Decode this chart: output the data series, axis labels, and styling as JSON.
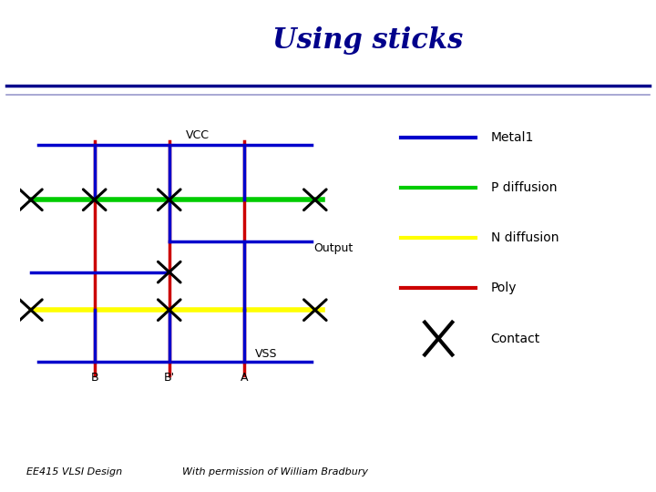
{
  "title": "Using sticks",
  "title_color": "#00008B",
  "title_fontsize": 22,
  "title_style": "italic",
  "title_font": "serif",
  "background_color": "#ffffff",
  "header_line1_color": "#00008B",
  "header_line2_color": "#9999cc",
  "metal_color": "#0000CC",
  "pdiff_color": "#00CC00",
  "ndiff_color": "#FFFF00",
  "poly_color": "#CC0000",
  "contact_color": "#000000",
  "label_color": "#000000",
  "vcc_label": "VCC",
  "vss_label": "VSS",
  "output_label": "Output",
  "b_label": "B",
  "b_prime_label": "B'",
  "a_label": "A",
  "legend_items": [
    {
      "label": "Metal1",
      "color": "#0000CC",
      "type": "line"
    },
    {
      "label": "P diffusion",
      "color": "#00CC00",
      "type": "line"
    },
    {
      "label": "N diffusion",
      "color": "#FFFF00",
      "type": "line"
    },
    {
      "label": "Poly",
      "color": "#CC0000",
      "type": "line"
    },
    {
      "label": "Contact",
      "color": "#000000",
      "type": "x"
    }
  ],
  "footer_left": "EE415 VLSI Design",
  "footer_center": "With permission of William Bradbury"
}
